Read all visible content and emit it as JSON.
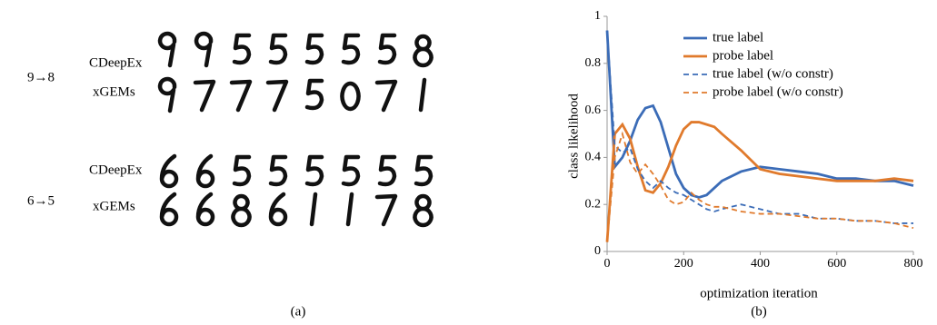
{
  "panel_a": {
    "caption": "(a)",
    "rows": [
      {
        "transition": "9→8",
        "methods": [
          "CDeepEx",
          "xGEMs"
        ]
      },
      {
        "transition": "6→5",
        "methods": [
          "CDeepEx",
          "xGEMs"
        ]
      }
    ]
  },
  "chart_data": {
    "type": "line",
    "caption": "(b)",
    "xlabel": "optimization iteration",
    "ylabel": "class likelihood",
    "x": [
      0,
      20,
      40,
      60,
      80,
      100,
      120,
      140,
      160,
      180,
      200,
      220,
      240,
      260,
      280,
      300,
      350,
      400,
      450,
      500,
      550,
      600,
      650,
      700,
      750,
      800
    ],
    "series": [
      {
        "name": "true label",
        "color": "#3b6cb7",
        "style": "solid",
        "values": [
          0.94,
          0.36,
          0.4,
          0.47,
          0.56,
          0.61,
          0.62,
          0.55,
          0.44,
          0.33,
          0.27,
          0.24,
          0.23,
          0.24,
          0.27,
          0.3,
          0.34,
          0.36,
          0.35,
          0.34,
          0.33,
          0.31,
          0.31,
          0.3,
          0.3,
          0.28
        ]
      },
      {
        "name": "probe label",
        "color": "#e07a2c",
        "style": "solid",
        "values": [
          0.04,
          0.5,
          0.54,
          0.48,
          0.36,
          0.26,
          0.25,
          0.29,
          0.36,
          0.45,
          0.52,
          0.55,
          0.55,
          0.54,
          0.53,
          0.5,
          0.43,
          0.35,
          0.33,
          0.32,
          0.31,
          0.3,
          0.3,
          0.3,
          0.31,
          0.3
        ]
      },
      {
        "name": "true label (w/o constr)",
        "color": "#3b6cb7",
        "style": "dashed",
        "values": [
          0.94,
          0.45,
          0.42,
          0.44,
          0.35,
          0.3,
          0.27,
          0.3,
          0.27,
          0.25,
          0.24,
          0.22,
          0.2,
          0.18,
          0.17,
          0.18,
          0.2,
          0.18,
          0.16,
          0.16,
          0.14,
          0.14,
          0.13,
          0.13,
          0.12,
          0.12
        ]
      },
      {
        "name": "probe label (w/o constr)",
        "color": "#e07a2c",
        "style": "dashed",
        "values": [
          0.04,
          0.4,
          0.5,
          0.38,
          0.33,
          0.37,
          0.33,
          0.28,
          0.22,
          0.2,
          0.21,
          0.25,
          0.22,
          0.2,
          0.19,
          0.19,
          0.17,
          0.16,
          0.16,
          0.15,
          0.14,
          0.14,
          0.13,
          0.13,
          0.12,
          0.1
        ]
      }
    ],
    "xlim": [
      0,
      800
    ],
    "xticks": [
      0,
      200,
      400,
      600,
      800
    ],
    "ylim": [
      0,
      1
    ],
    "yticks": [
      0,
      0.2,
      0.4,
      0.6,
      0.8,
      1
    ],
    "legend": "top"
  }
}
